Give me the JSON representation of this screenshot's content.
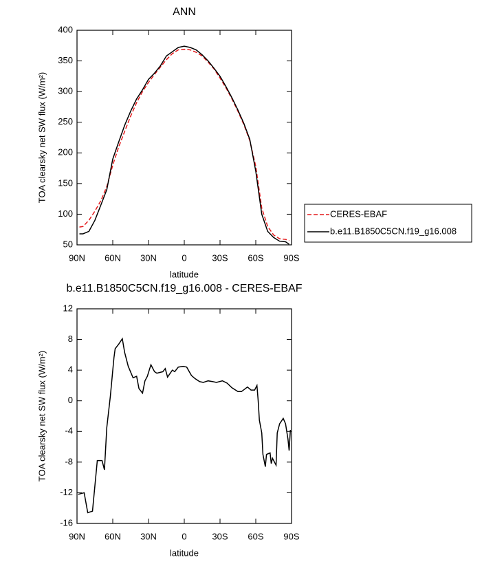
{
  "chart_data": [
    {
      "type": "line",
      "title": "ANN",
      "xlabel": "latitude",
      "ylabel": "TOA clearsky net SW flux (W/m²)",
      "x": [
        88,
        85,
        80,
        75,
        70,
        65,
        60,
        55,
        50,
        45,
        40,
        35,
        30,
        25,
        20,
        15,
        10,
        5,
        0,
        -5,
        -10,
        -15,
        -20,
        -25,
        -30,
        -35,
        -40,
        -45,
        -50,
        -55,
        -60,
        -65,
        -70,
        -75,
        -80,
        -85,
        -88
      ],
      "series": [
        {
          "name": "CERES-EBAF",
          "color": "#e41a1c",
          "style": "dashed",
          "values": [
            79,
            80,
            90,
            105,
            122,
            145,
            180,
            210,
            235,
            260,
            282,
            300,
            315,
            328,
            340,
            352,
            362,
            368,
            369,
            368,
            364,
            358,
            348,
            337,
            322,
            306,
            288,
            268,
            246,
            220,
            178,
            110,
            80,
            66,
            60,
            59,
            57
          ]
        },
        {
          "name": "b.e11.B1850C5CN.f19_g16.008",
          "color": "#000000",
          "style": "solid",
          "values": [
            68,
            68,
            72,
            90,
            115,
            140,
            190,
            218,
            245,
            268,
            288,
            303,
            320,
            330,
            342,
            358,
            365,
            372,
            374,
            372,
            368,
            360,
            350,
            338,
            325,
            308,
            290,
            270,
            248,
            222,
            170,
            100,
            72,
            62,
            56,
            55,
            51
          ]
        }
      ],
      "xlim": [
        90,
        -90
      ],
      "xticks": [
        {
          "value": 90,
          "label": "90N"
        },
        {
          "value": 60,
          "label": "60N"
        },
        {
          "value": 30,
          "label": "30N"
        },
        0,
        {
          "value": -30,
          "label": "30S"
        },
        {
          "value": -60,
          "label": "60S"
        },
        {
          "value": -90,
          "label": "90S"
        }
      ],
      "ylim": [
        50,
        400
      ],
      "yticks": [
        50,
        100,
        150,
        200,
        250,
        300,
        350,
        400
      ],
      "legend": "right"
    },
    {
      "type": "line",
      "title": "b.e11.B1850C5CN.f19_g16.008 - CERES-EBAF",
      "xlabel": "latitude",
      "ylabel": "TOA clearsky net SW flux (W/m²)",
      "x": [
        89,
        84,
        81,
        77,
        73,
        69,
        67,
        65,
        62,
        59,
        58,
        55,
        52,
        50,
        47,
        43,
        40,
        38,
        35,
        33,
        31,
        28,
        25,
        23,
        18,
        16,
        14,
        10,
        8,
        5,
        1,
        -2,
        -6,
        -9,
        -13,
        -16,
        -20,
        -24,
        -27,
        -32,
        -36,
        -40,
        -45,
        -48,
        -53,
        -56,
        -59,
        -61,
        -62,
        -63,
        -65,
        -66,
        -68,
        -69,
        -72,
        -73,
        -74,
        -77,
        -78,
        -80,
        -83,
        -85,
        -87,
        -88,
        -89
      ],
      "values": [
        -12.2,
        -12,
        -14.6,
        -14.4,
        -7.8,
        -7.8,
        -9,
        -3.5,
        0.6,
        5.6,
        6.8,
        7.4,
        8.1,
        6.3,
        4.5,
        3,
        3.2,
        1.6,
        1,
        2.6,
        3.2,
        4.7,
        3.8,
        3.6,
        3.8,
        4.2,
        3.1,
        4,
        3.8,
        4.4,
        4.5,
        4.4,
        3.3,
        2.9,
        2.5,
        2.4,
        2.6,
        2.5,
        2.4,
        2.6,
        2.3,
        1.7,
        1.2,
        1.2,
        1.8,
        1.4,
        1.4,
        2,
        0,
        -2.5,
        -4.2,
        -7,
        -8.6,
        -7,
        -6.8,
        -8.2,
        -7.5,
        -8.4,
        -4.2,
        -3,
        -2.3,
        -3,
        -5,
        -6.5,
        -3.8
      ],
      "color": "#000000",
      "xlim": [
        90,
        -90
      ],
      "xticks": [
        {
          "value": 90,
          "label": "90N"
        },
        {
          "value": 60,
          "label": "60N"
        },
        {
          "value": 30,
          "label": "30N"
        },
        0,
        {
          "value": -30,
          "label": "30S"
        },
        {
          "value": -60,
          "label": "60S"
        },
        {
          "value": -90,
          "label": "90S"
        }
      ],
      "ylim": [
        -16,
        12
      ],
      "yticks": [
        -16,
        -12,
        -8,
        -4,
        0,
        4,
        8,
        12
      ]
    }
  ]
}
